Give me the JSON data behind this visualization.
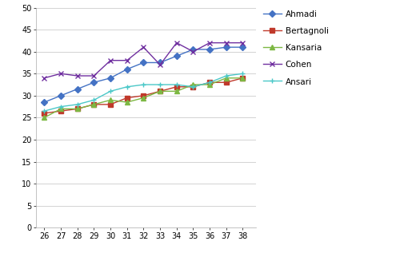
{
  "x": [
    26,
    27,
    28,
    29,
    30,
    31,
    32,
    33,
    34,
    35,
    36,
    37,
    38
  ],
  "Ahmadi": [
    28.5,
    30,
    31.5,
    33,
    34,
    36,
    37.5,
    37.5,
    39,
    40.5,
    40.5,
    41,
    41
  ],
  "Bertagnoli": [
    26,
    26.5,
    27,
    28,
    28,
    29.5,
    30,
    31,
    32,
    32,
    33,
    33,
    34
  ],
  "Kansaria": [
    25,
    27,
    27,
    28,
    29,
    28.5,
    29.5,
    31,
    31,
    32.5,
    32.5,
    34,
    34
  ],
  "Cohen": [
    34,
    35,
    34.5,
    34.5,
    38,
    38,
    41,
    37,
    42,
    40,
    42,
    42,
    42
  ],
  "Ansari": [
    26.5,
    27.5,
    28,
    29,
    31,
    32,
    32.5,
    32.5,
    32.5,
    32,
    33,
    34.5,
    35
  ],
  "colors": {
    "Ahmadi": "#4472C4",
    "Bertagnoli": "#C0392B",
    "Kansaria": "#7DB843",
    "Cohen": "#7030A0",
    "Ansari": "#4BC8C8"
  },
  "markers": {
    "Ahmadi": "D",
    "Bertagnoli": "s",
    "Kansaria": "^",
    "Cohen": "x",
    "Ansari": "+"
  },
  "ylim": [
    0,
    50
  ],
  "yticks": [
    0,
    5,
    10,
    15,
    20,
    25,
    30,
    35,
    40,
    45,
    50
  ],
  "xlim": [
    25.5,
    38.8
  ],
  "xticks": [
    26,
    27,
    28,
    29,
    30,
    31,
    32,
    33,
    34,
    35,
    36,
    37,
    38
  ],
  "bg_color": "#FFFFFF",
  "grid_color": "#CCCCCC"
}
